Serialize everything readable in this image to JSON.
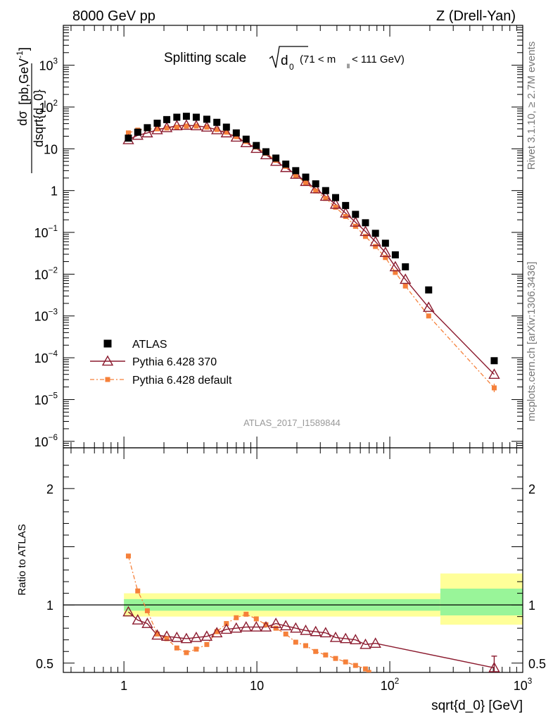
{
  "header": {
    "left": "8000 GeV pp",
    "right": "Z (Drell-Yan)"
  },
  "plot_title": {
    "main": "Splitting scale",
    "sqrt_symbol": "√",
    "var": "d",
    "var_sub": "0",
    "range_open": "(71 < m",
    "range_sub": "ll",
    "range_close": " < 111 GeV)"
  },
  "side_labels": {
    "rivet": "Rivet 3.1.10, ≥ 2.7M events",
    "mcplots": "mcplots.cern.ch [arXiv:1306.3436]"
  },
  "analysis_tag": "ATLAS_2017_I1589844",
  "colors": {
    "atlas": "#000000",
    "p370": "#8b1a2e",
    "pdef": "#f5803a",
    "band_stat": "#99f599",
    "band_total": "#ffff99"
  },
  "chart_data": [
    {
      "type": "scatter",
      "panel": "main",
      "ylabel_num": "dσ",
      "ylabel_den": "dsqrt{d_0}",
      "ylabel_units_pre": "[pb,GeV",
      "ylabel_units_sup": "-1",
      "ylabel_units_post": "]",
      "x_scale": "log",
      "y_scale": "log",
      "xlim": [
        0.35,
        1000
      ],
      "ylim": [
        7e-07,
        9000
      ],
      "y_ticks": [
        {
          "value": 1e-06,
          "base": "10",
          "exp": "−6"
        },
        {
          "value": 1e-05,
          "base": "10",
          "exp": "−5"
        },
        {
          "value": 0.0001,
          "base": "10",
          "exp": "−4"
        },
        {
          "value": 0.001,
          "base": "10",
          "exp": "−3"
        },
        {
          "value": 0.01,
          "base": "10",
          "exp": "−2"
        },
        {
          "value": 0.1,
          "base": "10",
          "exp": "−1"
        },
        {
          "value": 1,
          "base": "1",
          "exp": ""
        },
        {
          "value": 10,
          "base": "10",
          "exp": ""
        },
        {
          "value": 100,
          "base": "10",
          "exp": "2"
        },
        {
          "value": 1000,
          "base": "10",
          "exp": "3"
        }
      ],
      "legend_position": "bottom-left",
      "series": [
        {
          "name": "ATLAS",
          "marker": "square",
          "x": [
            1.08,
            1.27,
            1.5,
            1.78,
            2.1,
            2.5,
            2.95,
            3.5,
            4.2,
            5.0,
            5.9,
            7.0,
            8.3,
            9.9,
            11.7,
            13.9,
            16.5,
            19.6,
            23.3,
            27.7,
            32.9,
            39.1,
            46.5,
            55.2,
            65.6,
            78.0,
            92.7,
            110,
            131,
            196,
            610
          ],
          "y": [
            18,
            25,
            32,
            41,
            50,
            57,
            60,
            57,
            51,
            43,
            33,
            24,
            17,
            12,
            8.5,
            6.0,
            4.3,
            3.0,
            2.1,
            1.45,
            1.0,
            0.68,
            0.44,
            0.27,
            0.17,
            0.095,
            0.055,
            0.029,
            0.015,
            0.0042,
            8.5e-05
          ]
        },
        {
          "name": "Pythia 6.428 370",
          "marker": "open-triangle",
          "x": [
            1.08,
            1.27,
            1.5,
            1.78,
            2.1,
            2.5,
            2.95,
            3.5,
            4.2,
            5.0,
            5.9,
            7.0,
            8.3,
            9.9,
            11.7,
            13.9,
            16.5,
            19.6,
            23.3,
            27.7,
            32.9,
            39.1,
            46.5,
            55.2,
            65.6,
            78.0,
            92.7,
            110,
            131,
            196,
            610
          ],
          "y": [
            16.5,
            21,
            24,
            28.5,
            32,
            35.5,
            36.5,
            35.5,
            33,
            28.5,
            24,
            19,
            14,
            10.2,
            7.2,
            5.0,
            3.55,
            2.45,
            1.65,
            1.1,
            0.73,
            0.47,
            0.29,
            0.175,
            0.105,
            0.06,
            0.033,
            0.015,
            0.0075,
            0.0016,
            4e-05
          ]
        },
        {
          "name": "Pythia 6.428 default",
          "marker": "filled-square",
          "x": [
            1.08,
            1.27,
            1.5,
            1.78,
            2.1,
            2.5,
            2.95,
            3.5,
            4.2,
            5.0,
            5.9,
            7.0,
            8.3,
            9.9,
            11.7,
            13.9,
            16.5,
            19.6,
            23.3,
            27.7,
            32.9,
            39.1,
            46.5,
            55.2,
            65.6,
            78.0,
            92.7,
            110,
            131,
            196,
            610
          ],
          "y": [
            24,
            28,
            30,
            30,
            31.5,
            33,
            35,
            35,
            33,
            29,
            25,
            19.5,
            15,
            11,
            7.8,
            5.3,
            3.8,
            2.3,
            1.55,
            0.98,
            0.65,
            0.4,
            0.24,
            0.14,
            0.08,
            0.046,
            0.025,
            0.011,
            0.0052,
            0.001,
            1.9e-05
          ]
        }
      ]
    },
    {
      "type": "line",
      "panel": "ratio",
      "ylabel": "Ratio to ATLAS",
      "xlabel": "sqrt{d_0} [GeV]",
      "x_scale": "log",
      "xlim": [
        0.35,
        1000
      ],
      "ylim": [
        0.42,
        2.35
      ],
      "x_ticks": [
        {
          "value": 1,
          "base": "1",
          "exp": ""
        },
        {
          "value": 10,
          "base": "10",
          "exp": ""
        },
        {
          "value": 100,
          "base": "10",
          "exp": "2"
        },
        {
          "value": 1000,
          "base": "10",
          "exp": "3"
        }
      ],
      "y_ticks": [
        {
          "value": 0.5,
          "label": "0.5"
        },
        {
          "value": 1,
          "label": "1"
        },
        {
          "value": 2,
          "label": "2"
        }
      ],
      "bands": [
        {
          "x_lo": 1,
          "x_hi": 240,
          "total": [
            0.9,
            1.1
          ],
          "stat": [
            0.95,
            1.05
          ]
        },
        {
          "x_lo": 240,
          "x_hi": 1000,
          "total": [
            0.83,
            1.27
          ],
          "stat": [
            0.91,
            1.14
          ]
        }
      ],
      "series": [
        {
          "name": "Pythia 6.428 370",
          "x": [
            1.08,
            1.27,
            1.5,
            1.78,
            2.1,
            2.5,
            2.95,
            3.5,
            4.2,
            5.0,
            5.9,
            7.0,
            8.3,
            9.9,
            11.7,
            13.9,
            16.5,
            19.6,
            23.3,
            27.7,
            32.9,
            39.1,
            46.5,
            55.2,
            65.6,
            78.0,
            610
          ],
          "y": [
            0.94,
            0.87,
            0.84,
            0.74,
            0.73,
            0.72,
            0.71,
            0.72,
            0.73,
            0.76,
            0.79,
            0.8,
            0.81,
            0.81,
            0.81,
            0.84,
            0.82,
            0.8,
            0.78,
            0.77,
            0.76,
            0.72,
            0.71,
            0.7,
            0.66,
            0.67,
            0.46
          ]
        },
        {
          "name": "Pythia 6.428 default",
          "x": [
            1.08,
            1.27,
            1.5,
            1.78,
            2.1,
            2.5,
            2.95,
            3.5,
            4.2,
            5.0,
            5.9,
            7.0,
            8.3,
            9.9,
            11.7,
            13.9,
            16.5,
            19.6,
            23.3,
            27.7,
            32.9,
            39.1,
            46.5,
            55.2,
            65.6,
            69.5
          ],
          "y": [
            1.42,
            1.12,
            0.95,
            0.75,
            0.71,
            0.63,
            0.59,
            0.62,
            0.66,
            0.77,
            0.84,
            0.89,
            0.92,
            0.88,
            0.83,
            0.8,
            0.75,
            0.68,
            0.65,
            0.6,
            0.57,
            0.54,
            0.51,
            0.48,
            0.45,
            0.42
          ]
        }
      ]
    }
  ]
}
